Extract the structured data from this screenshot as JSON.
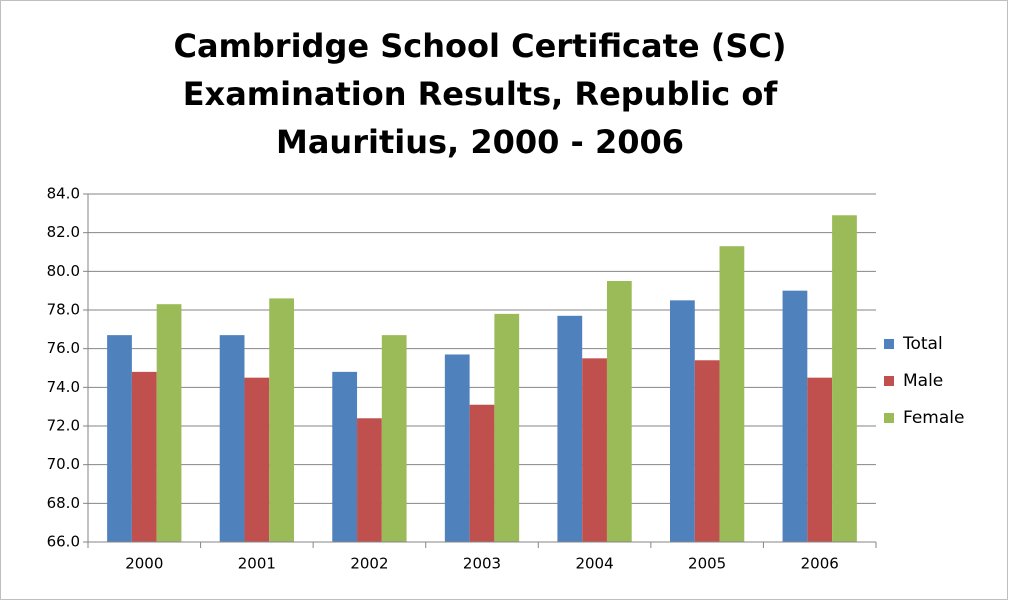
{
  "chart_data": {
    "type": "bar",
    "title": [
      "Cambridge School Certificate (SC)",
      "Examination Results, Republic of",
      "Mauritius, 2000 - 2006"
    ],
    "categories": [
      "2000",
      "2001",
      "2002",
      "2003",
      "2004",
      "2005",
      "2006"
    ],
    "series": [
      {
        "name": "Total",
        "color": "#4f81bd",
        "values": [
          76.7,
          76.7,
          74.8,
          75.7,
          77.7,
          78.5,
          79.0
        ]
      },
      {
        "name": "Male",
        "color": "#c0504d",
        "values": [
          74.8,
          74.5,
          72.4,
          73.1,
          75.5,
          75.4,
          74.5
        ]
      },
      {
        "name": "Female",
        "color": "#9bbb59",
        "values": [
          78.3,
          78.6,
          76.7,
          77.8,
          79.5,
          81.3,
          82.9
        ]
      }
    ],
    "ylim": [
      66,
      84
    ],
    "yticks": [
      {
        "value": 66,
        "label": "66.0"
      },
      {
        "value": 68,
        "label": "68.0"
      },
      {
        "value": 70,
        "label": "70.0"
      },
      {
        "value": 72,
        "label": "72.0"
      },
      {
        "value": 74,
        "label": "74.0"
      },
      {
        "value": 76,
        "label": "76.0"
      },
      {
        "value": 78,
        "label": "78.0"
      },
      {
        "value": 80,
        "label": "80.0"
      },
      {
        "value": 82,
        "label": "82.0"
      },
      {
        "value": 84,
        "label": "84.0"
      }
    ],
    "grid": true,
    "legend": "right"
  }
}
